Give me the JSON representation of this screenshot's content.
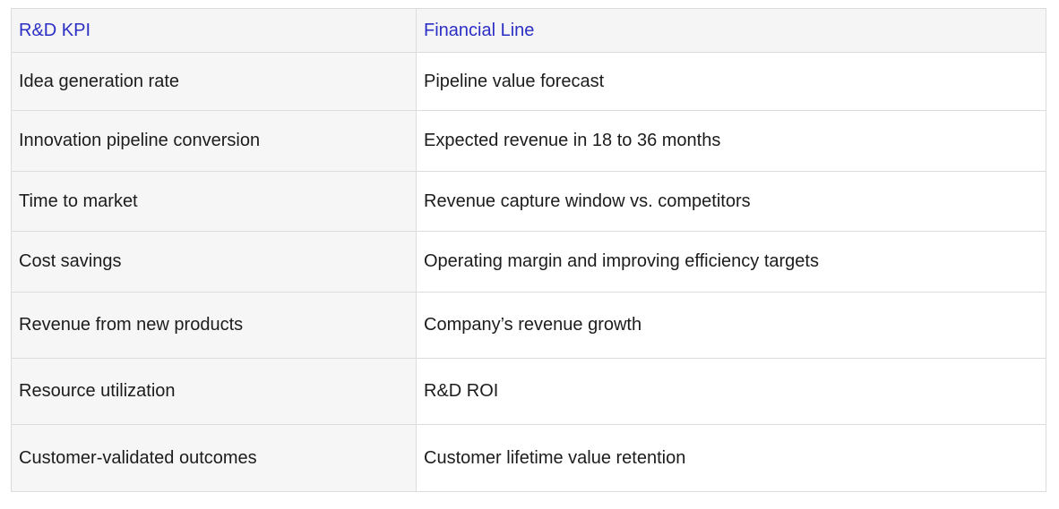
{
  "table": {
    "header": [
      "R&D KPI",
      "Financial Line"
    ],
    "rows": [
      [
        "Idea generation rate",
        "Pipeline value forecast"
      ],
      [
        "Innovation pipeline conversion",
        "Expected revenue in 18 to 36 months"
      ],
      [
        "Time to market",
        "Revenue capture window vs. competitors"
      ],
      [
        "Cost savings",
        "Operating margin and improving efficiency targets"
      ],
      [
        "Revenue from new products",
        "Company’s revenue growth"
      ],
      [
        "Resource utilization",
        "R&D ROI"
      ],
      [
        "Customer-validated outcomes",
        "Customer lifetime value retention"
      ]
    ]
  }
}
